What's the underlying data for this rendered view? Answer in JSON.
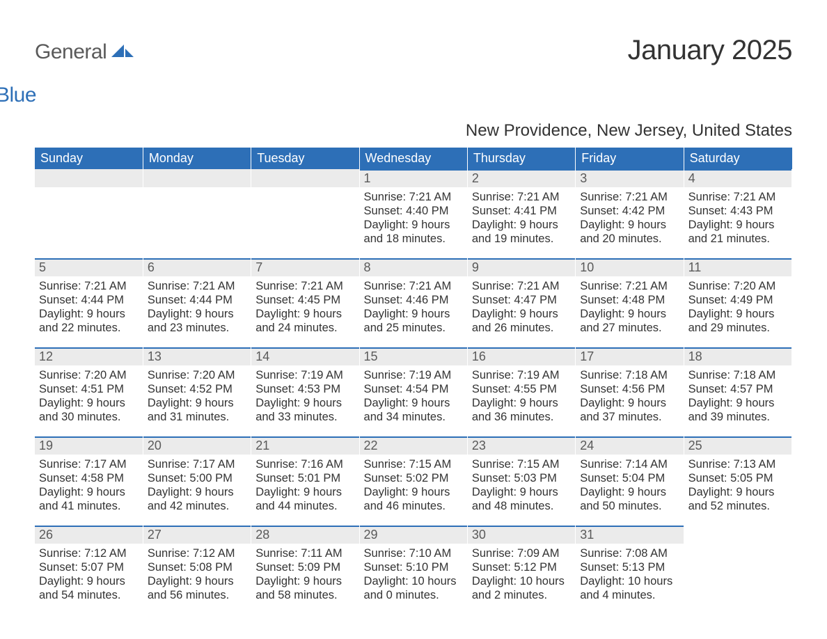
{
  "brand": {
    "text1": "General",
    "text2": "Blue",
    "color_gray": "#5a5a5a",
    "color_blue": "#2d6fb7"
  },
  "title": "January 2025",
  "location": "New Providence, New Jersey, United States",
  "theme": {
    "header_bg": "#2d6fb7",
    "header_fg": "#ffffff",
    "daynum_bg": "#ebebeb",
    "daynum_fg": "#5a5a5a",
    "border_top": "#2d6fb7",
    "body_fg": "#333333",
    "page_bg": "#ffffff",
    "font_family": "Arial, Helvetica, sans-serif",
    "title_fontsize": 40,
    "location_fontsize": 24,
    "header_fontsize": 18,
    "daynum_fontsize": 18,
    "body_fontsize": 16.5
  },
  "weekdays": [
    "Sunday",
    "Monday",
    "Tuesday",
    "Wednesday",
    "Thursday",
    "Friday",
    "Saturday"
  ],
  "weeks": [
    [
      {
        "day": "",
        "sunrise": "",
        "sunset": "",
        "daylight1": "",
        "daylight2": ""
      },
      {
        "day": "",
        "sunrise": "",
        "sunset": "",
        "daylight1": "",
        "daylight2": ""
      },
      {
        "day": "",
        "sunrise": "",
        "sunset": "",
        "daylight1": "",
        "daylight2": ""
      },
      {
        "day": "1",
        "sunrise": "Sunrise: 7:21 AM",
        "sunset": "Sunset: 4:40 PM",
        "daylight1": "Daylight: 9 hours",
        "daylight2": "and 18 minutes."
      },
      {
        "day": "2",
        "sunrise": "Sunrise: 7:21 AM",
        "sunset": "Sunset: 4:41 PM",
        "daylight1": "Daylight: 9 hours",
        "daylight2": "and 19 minutes."
      },
      {
        "day": "3",
        "sunrise": "Sunrise: 7:21 AM",
        "sunset": "Sunset: 4:42 PM",
        "daylight1": "Daylight: 9 hours",
        "daylight2": "and 20 minutes."
      },
      {
        "day": "4",
        "sunrise": "Sunrise: 7:21 AM",
        "sunset": "Sunset: 4:43 PM",
        "daylight1": "Daylight: 9 hours",
        "daylight2": "and 21 minutes."
      }
    ],
    [
      {
        "day": "5",
        "sunrise": "Sunrise: 7:21 AM",
        "sunset": "Sunset: 4:44 PM",
        "daylight1": "Daylight: 9 hours",
        "daylight2": "and 22 minutes."
      },
      {
        "day": "6",
        "sunrise": "Sunrise: 7:21 AM",
        "sunset": "Sunset: 4:44 PM",
        "daylight1": "Daylight: 9 hours",
        "daylight2": "and 23 minutes."
      },
      {
        "day": "7",
        "sunrise": "Sunrise: 7:21 AM",
        "sunset": "Sunset: 4:45 PM",
        "daylight1": "Daylight: 9 hours",
        "daylight2": "and 24 minutes."
      },
      {
        "day": "8",
        "sunrise": "Sunrise: 7:21 AM",
        "sunset": "Sunset: 4:46 PM",
        "daylight1": "Daylight: 9 hours",
        "daylight2": "and 25 minutes."
      },
      {
        "day": "9",
        "sunrise": "Sunrise: 7:21 AM",
        "sunset": "Sunset: 4:47 PM",
        "daylight1": "Daylight: 9 hours",
        "daylight2": "and 26 minutes."
      },
      {
        "day": "10",
        "sunrise": "Sunrise: 7:21 AM",
        "sunset": "Sunset: 4:48 PM",
        "daylight1": "Daylight: 9 hours",
        "daylight2": "and 27 minutes."
      },
      {
        "day": "11",
        "sunrise": "Sunrise: 7:20 AM",
        "sunset": "Sunset: 4:49 PM",
        "daylight1": "Daylight: 9 hours",
        "daylight2": "and 29 minutes."
      }
    ],
    [
      {
        "day": "12",
        "sunrise": "Sunrise: 7:20 AM",
        "sunset": "Sunset: 4:51 PM",
        "daylight1": "Daylight: 9 hours",
        "daylight2": "and 30 minutes."
      },
      {
        "day": "13",
        "sunrise": "Sunrise: 7:20 AM",
        "sunset": "Sunset: 4:52 PM",
        "daylight1": "Daylight: 9 hours",
        "daylight2": "and 31 minutes."
      },
      {
        "day": "14",
        "sunrise": "Sunrise: 7:19 AM",
        "sunset": "Sunset: 4:53 PM",
        "daylight1": "Daylight: 9 hours",
        "daylight2": "and 33 minutes."
      },
      {
        "day": "15",
        "sunrise": "Sunrise: 7:19 AM",
        "sunset": "Sunset: 4:54 PM",
        "daylight1": "Daylight: 9 hours",
        "daylight2": "and 34 minutes."
      },
      {
        "day": "16",
        "sunrise": "Sunrise: 7:19 AM",
        "sunset": "Sunset: 4:55 PM",
        "daylight1": "Daylight: 9 hours",
        "daylight2": "and 36 minutes."
      },
      {
        "day": "17",
        "sunrise": "Sunrise: 7:18 AM",
        "sunset": "Sunset: 4:56 PM",
        "daylight1": "Daylight: 9 hours",
        "daylight2": "and 37 minutes."
      },
      {
        "day": "18",
        "sunrise": "Sunrise: 7:18 AM",
        "sunset": "Sunset: 4:57 PM",
        "daylight1": "Daylight: 9 hours",
        "daylight2": "and 39 minutes."
      }
    ],
    [
      {
        "day": "19",
        "sunrise": "Sunrise: 7:17 AM",
        "sunset": "Sunset: 4:58 PM",
        "daylight1": "Daylight: 9 hours",
        "daylight2": "and 41 minutes."
      },
      {
        "day": "20",
        "sunrise": "Sunrise: 7:17 AM",
        "sunset": "Sunset: 5:00 PM",
        "daylight1": "Daylight: 9 hours",
        "daylight2": "and 42 minutes."
      },
      {
        "day": "21",
        "sunrise": "Sunrise: 7:16 AM",
        "sunset": "Sunset: 5:01 PM",
        "daylight1": "Daylight: 9 hours",
        "daylight2": "and 44 minutes."
      },
      {
        "day": "22",
        "sunrise": "Sunrise: 7:15 AM",
        "sunset": "Sunset: 5:02 PM",
        "daylight1": "Daylight: 9 hours",
        "daylight2": "and 46 minutes."
      },
      {
        "day": "23",
        "sunrise": "Sunrise: 7:15 AM",
        "sunset": "Sunset: 5:03 PM",
        "daylight1": "Daylight: 9 hours",
        "daylight2": "and 48 minutes."
      },
      {
        "day": "24",
        "sunrise": "Sunrise: 7:14 AM",
        "sunset": "Sunset: 5:04 PM",
        "daylight1": "Daylight: 9 hours",
        "daylight2": "and 50 minutes."
      },
      {
        "day": "25",
        "sunrise": "Sunrise: 7:13 AM",
        "sunset": "Sunset: 5:05 PM",
        "daylight1": "Daylight: 9 hours",
        "daylight2": "and 52 minutes."
      }
    ],
    [
      {
        "day": "26",
        "sunrise": "Sunrise: 7:12 AM",
        "sunset": "Sunset: 5:07 PM",
        "daylight1": "Daylight: 9 hours",
        "daylight2": "and 54 minutes."
      },
      {
        "day": "27",
        "sunrise": "Sunrise: 7:12 AM",
        "sunset": "Sunset: 5:08 PM",
        "daylight1": "Daylight: 9 hours",
        "daylight2": "and 56 minutes."
      },
      {
        "day": "28",
        "sunrise": "Sunrise: 7:11 AM",
        "sunset": "Sunset: 5:09 PM",
        "daylight1": "Daylight: 9 hours",
        "daylight2": "and 58 minutes."
      },
      {
        "day": "29",
        "sunrise": "Sunrise: 7:10 AM",
        "sunset": "Sunset: 5:10 PM",
        "daylight1": "Daylight: 10 hours",
        "daylight2": "and 0 minutes."
      },
      {
        "day": "30",
        "sunrise": "Sunrise: 7:09 AM",
        "sunset": "Sunset: 5:12 PM",
        "daylight1": "Daylight: 10 hours",
        "daylight2": "and 2 minutes."
      },
      {
        "day": "31",
        "sunrise": "Sunrise: 7:08 AM",
        "sunset": "Sunset: 5:13 PM",
        "daylight1": "Daylight: 10 hours",
        "daylight2": "and 4 minutes."
      },
      {
        "day": "",
        "sunrise": "",
        "sunset": "",
        "daylight1": "",
        "daylight2": ""
      }
    ]
  ]
}
